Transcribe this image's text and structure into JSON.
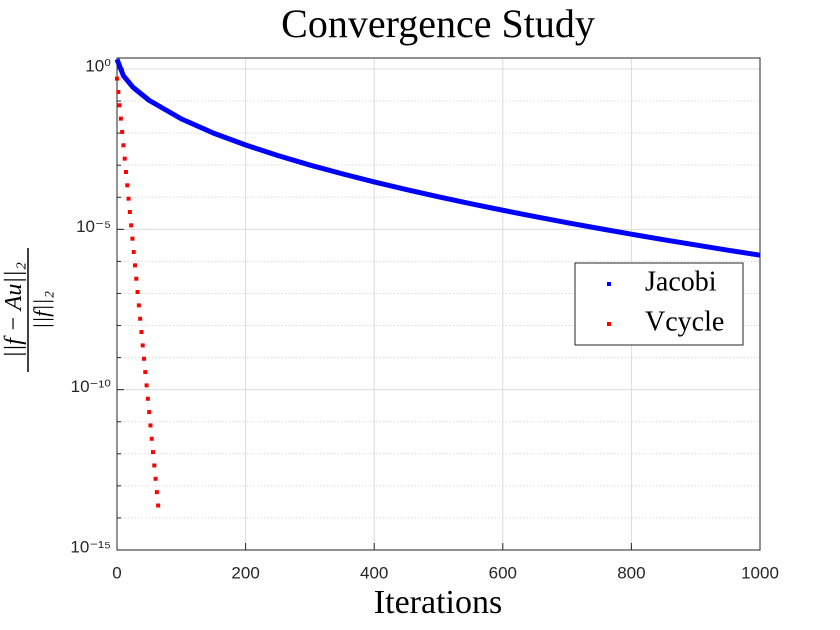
{
  "chart_data": {
    "type": "scatter",
    "title": "Convergence Study",
    "xlabel": "Iterations",
    "ylabel": {
      "numerator": "||f − Au||₂",
      "denominator": "||f||₂"
    },
    "xlim": [
      0,
      1000
    ],
    "xticks": [
      0,
      200,
      400,
      600,
      800,
      1000
    ],
    "yscale": "log",
    "ylim": [
      1e-15,
      2.2
    ],
    "yticks": [
      {
        "value": 1e-15,
        "label": "10⁻¹⁵"
      },
      {
        "value": 1e-10,
        "label": "10⁻¹⁰"
      },
      {
        "value": 1e-05,
        "label": "10⁻⁵"
      },
      {
        "value": 1,
        "label": "10⁰"
      }
    ],
    "yminorticks": [
      1e-14,
      1e-13,
      1e-12,
      1e-11,
      1e-09,
      1e-08,
      1e-07,
      1e-06,
      0.0001,
      0.001,
      0.01,
      0.1
    ],
    "grid": true,
    "legend": "east",
    "series": [
      {
        "name": "Jacobi",
        "color": "#0000ff",
        "style": "line",
        "x": [
          0,
          10,
          25,
          50,
          100,
          150,
          200,
          250,
          300,
          350,
          400,
          450,
          500,
          550,
          600,
          650,
          700,
          750,
          800,
          850,
          900,
          950,
          1000
        ],
        "values": [
          2.0,
          0.614,
          0.267,
          0.105,
          0.0278,
          0.01,
          0.00427,
          0.002,
          0.00101,
          0.00054,
          0.000301,
          0.000174,
          0.000103,
          6.3e-05,
          3.93e-05,
          2.5e-05,
          1.61e-05,
          1.06e-05,
          7.06e-06,
          4.76e-06,
          3.25e-06,
          2.24e-06,
          1.56e-06
        ]
      },
      {
        "name": "Vcycle",
        "color": "#ff0000",
        "style": "markers",
        "x": [
          0,
          2,
          4,
          6,
          8,
          10,
          12,
          14,
          16,
          18,
          20,
          22,
          24,
          26,
          28,
          30,
          32,
          34,
          36,
          38,
          40,
          42,
          44,
          46,
          48,
          50,
          52,
          54,
          56,
          58,
          60,
          62,
          64
        ],
        "values": [
          0.501,
          0.192,
          0.0738,
          0.0283,
          0.0109,
          0.00417,
          0.0016,
          0.000614,
          0.000236,
          9.04e-05,
          3.47e-05,
          1.33e-05,
          5.11e-06,
          1.96e-06,
          7.52e-07,
          2.88e-07,
          1.11e-07,
          4.25e-08,
          1.63e-08,
          6.25e-09,
          2.4e-09,
          9.2e-10,
          3.53e-10,
          1.36e-10,
          5.2e-11,
          2e-11,
          7.66e-12,
          2.94e-12,
          1.13e-12,
          4.33e-13,
          1.66e-13,
          6.37e-14,
          2.44e-14
        ]
      }
    ]
  }
}
